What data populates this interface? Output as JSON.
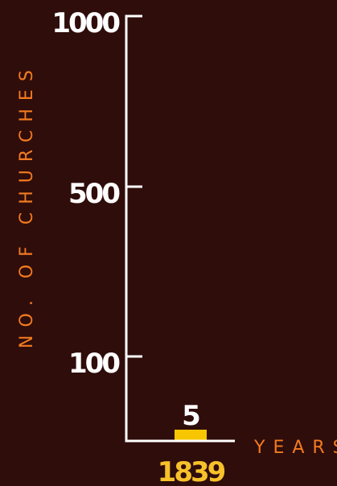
{
  "chart_data": {
    "type": "bar",
    "categories": [
      "1839"
    ],
    "values": [
      5
    ],
    "data_labels": [
      "5"
    ],
    "title": "",
    "xlabel": "YEARS",
    "ylabel": "NO. OF CHURCHES",
    "y_ticks": [
      100,
      500,
      1000
    ],
    "y_tick_labels": [
      "100",
      "500",
      "1000"
    ],
    "ylim": [
      0,
      1000
    ],
    "grid": false,
    "legend": "none"
  },
  "colors": {
    "background": "#2f0d0b",
    "axis": "#ffffff",
    "bar": "#f7c600",
    "axis_title": "#f37a20",
    "category_label": "#f7c12a",
    "tick_label": "#ffffff"
  }
}
